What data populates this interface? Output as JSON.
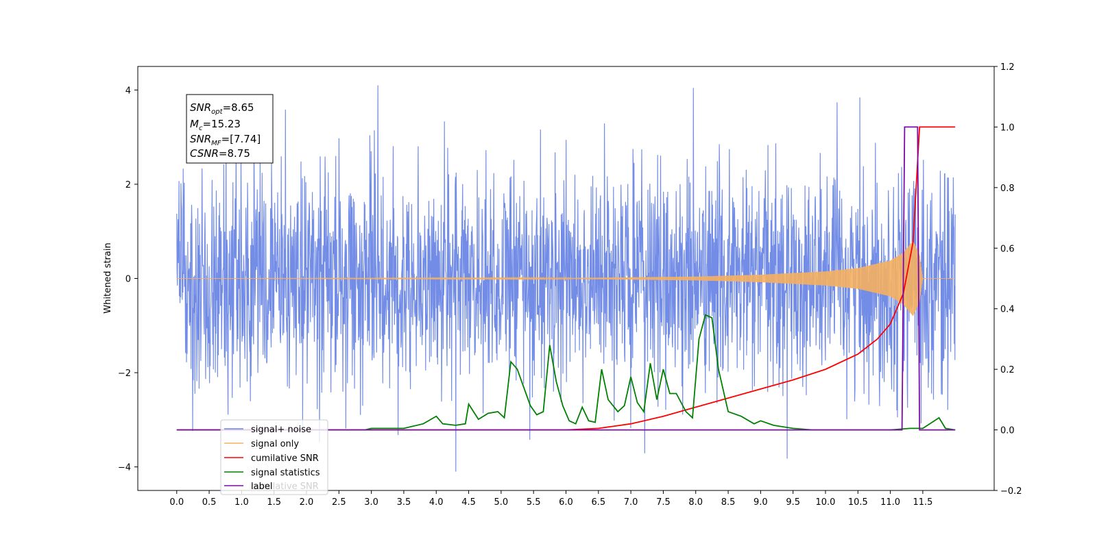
{
  "chart_data": {
    "type": "line",
    "title": "",
    "ylabel": "Whitened strain",
    "xlim": [
      -0.6,
      12.6
    ],
    "ylim": [
      -4.5,
      4.5
    ],
    "y2lim": [
      -0.2,
      1.2
    ],
    "xticks": [
      "0.0",
      "0.5",
      "1.0",
      "1.5",
      "2.0",
      "2.5",
      "3.0",
      "3.5",
      "4.0",
      "4.5",
      "5.0",
      "5.5",
      "6.0",
      "6.5",
      "7.0",
      "7.5",
      "8.0",
      "8.5",
      "9.0",
      "9.5",
      "10.0",
      "10.5",
      "11.0",
      "11.5"
    ],
    "yticks": [
      4,
      2,
      0,
      -2,
      -4
    ],
    "y2ticks": [
      "1.2",
      "1.0",
      "0.8",
      "0.6",
      "0.4",
      "0.2",
      "0.0",
      "−0.2"
    ],
    "annotation": {
      "lines": [
        {
          "base": "SNR",
          "sub": "opt",
          "value": "=8.65"
        },
        {
          "base": "M",
          "sub": "c",
          "value": "=15.23"
        },
        {
          "base": "SNR",
          "sub": "MF",
          "value": "=[7.74]"
        },
        {
          "base": "CSNR",
          "sub": "",
          "value": "=8.75"
        }
      ]
    },
    "legend": {
      "placement": "lower-left",
      "entries": [
        "signal+ noise",
        "signal only",
        "cumilative SNR",
        "signal statistics",
        "label"
      ],
      "ghost_text": "cumilative SNR"
    },
    "series": [
      {
        "name": "signal+ noise",
        "axis": "left",
        "color": "#6b87e6",
        "style": "noise",
        "x_range": [
          0.0,
          12.0
        ],
        "sigma": 1.0,
        "y_extremes": [
          4.1,
          -4.1
        ]
      },
      {
        "name": "signal only",
        "axis": "left",
        "color": "#f5b060",
        "style": "chirp",
        "x_range": [
          0.0,
          12.0
        ],
        "envelope": {
          "x": [
            0.0,
            6.0,
            8.0,
            9.0,
            10.0,
            10.5,
            11.0,
            11.2,
            11.35,
            11.45,
            11.5,
            12.0
          ],
          "y": [
            0.0,
            0.01,
            0.04,
            0.08,
            0.15,
            0.22,
            0.38,
            0.55,
            0.8,
            0.5,
            0.0,
            0.0
          ]
        }
      },
      {
        "name": "cumilative SNR",
        "axis": "right",
        "color": "#ff0000",
        "x": [
          0.0,
          6.0,
          6.5,
          7.0,
          7.5,
          8.0,
          8.5,
          9.0,
          9.5,
          10.0,
          10.5,
          10.8,
          11.0,
          11.2,
          11.35,
          11.45,
          11.55,
          12.0
        ],
        "y": [
          0.0,
          0.0,
          0.005,
          0.02,
          0.045,
          0.075,
          0.105,
          0.135,
          0.165,
          0.2,
          0.25,
          0.3,
          0.35,
          0.45,
          0.62,
          1.0,
          1.0,
          1.0
        ]
      },
      {
        "name": "signal statistics",
        "axis": "right",
        "color": "#008000",
        "x": [
          0.0,
          2.9,
          3.0,
          3.2,
          3.5,
          3.8,
          4.0,
          4.1,
          4.3,
          4.45,
          4.5,
          4.65,
          4.8,
          4.95,
          5.05,
          5.15,
          5.25,
          5.35,
          5.45,
          5.55,
          5.65,
          5.75,
          5.85,
          5.95,
          6.05,
          6.15,
          6.25,
          6.35,
          6.45,
          6.55,
          6.65,
          6.8,
          6.9,
          7.0,
          7.1,
          7.2,
          7.3,
          7.4,
          7.5,
          7.6,
          7.7,
          7.85,
          7.95,
          8.05,
          8.15,
          8.25,
          8.35,
          8.5,
          8.7,
          8.9,
          9.0,
          9.2,
          9.5,
          9.8,
          10.5,
          11.0,
          11.3,
          11.5,
          11.75,
          11.85,
          12.0
        ],
        "y": [
          0.0,
          0.0,
          0.005,
          0.005,
          0.005,
          0.02,
          0.045,
          0.02,
          0.015,
          0.02,
          0.085,
          0.035,
          0.055,
          0.06,
          0.04,
          0.225,
          0.2,
          0.14,
          0.08,
          0.05,
          0.06,
          0.28,
          0.16,
          0.08,
          0.03,
          0.02,
          0.075,
          0.03,
          0.025,
          0.2,
          0.1,
          0.06,
          0.08,
          0.175,
          0.09,
          0.06,
          0.22,
          0.1,
          0.2,
          0.12,
          0.12,
          0.06,
          0.04,
          0.3,
          0.38,
          0.37,
          0.2,
          0.06,
          0.045,
          0.02,
          0.03,
          0.015,
          0.005,
          0.0,
          0.0,
          0.0,
          0.005,
          0.005,
          0.04,
          0.005,
          0.0
        ]
      },
      {
        "name": "label",
        "axis": "right",
        "color": "#7b0aa6",
        "x": [
          0.0,
          11.18,
          11.22,
          11.42,
          11.45,
          11.48,
          12.0
        ],
        "y": [
          0.0,
          0.0,
          1.0,
          1.0,
          0.0,
          0.0,
          0.0
        ]
      }
    ]
  },
  "colors": {
    "noise": "#6b87e6",
    "signal": "#f5b060",
    "cumulative": "#ff0000",
    "statistics": "#008000",
    "label": "#7b0aa6"
  }
}
